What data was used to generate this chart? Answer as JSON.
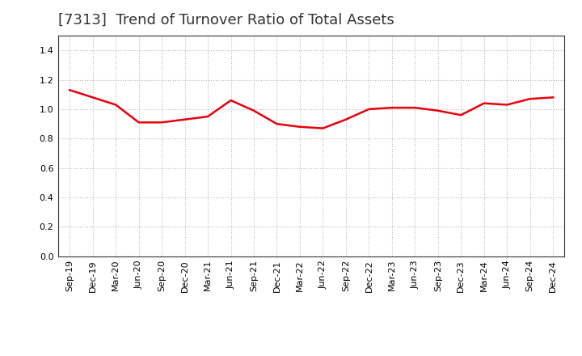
{
  "title": "[7313]  Trend of Turnover Ratio of Total Assets",
  "x_labels": [
    "Sep-19",
    "Dec-19",
    "Mar-20",
    "Jun-20",
    "Sep-20",
    "Dec-20",
    "Mar-21",
    "Jun-21",
    "Sep-21",
    "Dec-21",
    "Mar-22",
    "Jun-22",
    "Sep-22",
    "Dec-22",
    "Mar-23",
    "Jun-23",
    "Sep-23",
    "Dec-23",
    "Mar-24",
    "Jun-24",
    "Sep-24",
    "Dec-24"
  ],
  "values": [
    1.13,
    1.08,
    1.03,
    0.91,
    0.91,
    0.93,
    0.95,
    1.06,
    0.99,
    0.9,
    0.88,
    0.87,
    0.93,
    1.0,
    1.01,
    1.01,
    0.99,
    0.96,
    1.04,
    1.03,
    1.07,
    1.08
  ],
  "line_color": "#e8000d",
  "line_width": 1.8,
  "ylim": [
    0.0,
    1.5
  ],
  "yticks": [
    0.0,
    0.2,
    0.4,
    0.6,
    0.8,
    1.0,
    1.2,
    1.4
  ],
  "background_color": "#ffffff",
  "plot_bg_color": "#ffffff",
  "grid_color": "#bbbbbb",
  "title_fontsize": 13,
  "tick_fontsize": 8,
  "title_color": "#333333"
}
